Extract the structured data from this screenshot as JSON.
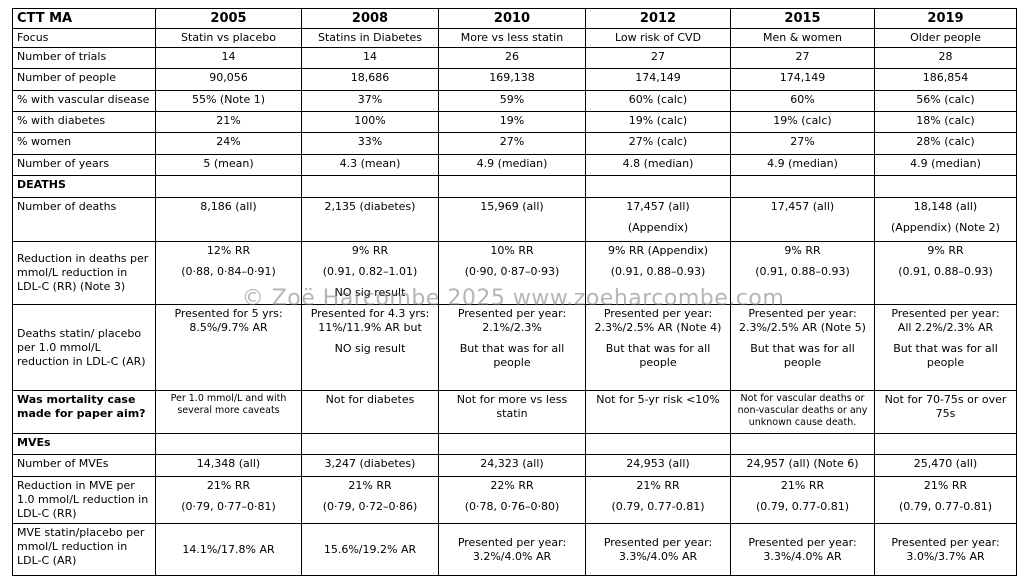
{
  "table": {
    "header": [
      "CTT MA",
      "2005",
      "2008",
      "2010",
      "2012",
      "2015",
      "2019"
    ],
    "rows": [
      {
        "label": "Focus",
        "cells": [
          "Statin vs placebo",
          "Statins in Diabetes",
          "More vs less statin",
          "Low risk of CVD",
          "Men & women",
          "Older people"
        ]
      },
      {
        "label": "Number of trials",
        "cells": [
          "14",
          "14",
          "26",
          "27",
          "27",
          "28"
        ]
      },
      {
        "label": "Number of people",
        "cells": [
          "90,056",
          "18,686",
          "169,138",
          "174,149",
          "174,149",
          "186,854"
        ]
      },
      {
        "label": "% with vascular disease",
        "cells": [
          "55% (Note 1)",
          "37%",
          "59%",
          "60% (calc)",
          "60%",
          "56% (calc)"
        ]
      },
      {
        "label": "% with diabetes",
        "cells": [
          "21%",
          "100%",
          "19%",
          "19% (calc)",
          "19% (calc)",
          "18% (calc)"
        ]
      },
      {
        "label": "% women",
        "cells": [
          "24%",
          "33%",
          "27%",
          "27% (calc)",
          "27%",
          "28% (calc)"
        ]
      },
      {
        "label": "Number of years",
        "cells": [
          "5 (mean)",
          "4.3 (mean)",
          "4.9 (median)",
          "4.8 (median)",
          "4.9 (median)",
          "4.9 (median)"
        ]
      },
      {
        "section": "DEATHS"
      },
      {
        "label": "Number of deaths",
        "cells": [
          "8,186 (all)",
          "2,135 (diabetes)",
          "15,969 (all)",
          [
            "17,457 (all)",
            "(Appendix)"
          ],
          "17,457 (all)",
          [
            "18,148 (all)",
            "(Appendix) (Note 2)"
          ]
        ]
      },
      {
        "label": [
          [
            "Reduction in deaths per",
            "mmol/L reduction in",
            "LDL-C (RR) (Note 3)"
          ]
        ],
        "cells": [
          [
            "12% RR",
            "(0·88, 0·84–0·91)"
          ],
          [
            "9% RR",
            "(0.91, 0.82–1.01)",
            "NO sig result"
          ],
          [
            "10% RR",
            "(0·90, 0·87–0·93)"
          ],
          [
            "9% RR (Appendix)",
            "(0.91, 0.88–0.93)"
          ],
          [
            "9% RR",
            "(0.91, 0.88–0.93)"
          ],
          [
            "9% RR",
            "(0.91, 0.88–0.93)"
          ]
        ]
      },
      {
        "label": [
          [
            "Deaths statin/ placebo",
            "per 1.0 mmol/L",
            "reduction in LDL-C (AR)"
          ]
        ],
        "cells": [
          [
            [
              "Presented for 5 yrs:",
              "8.5%/9.7% AR"
            ]
          ],
          [
            [
              "Presented for 4.3 yrs:",
              "11%/11.9% AR but"
            ],
            "NO sig result"
          ],
          [
            [
              "Presented per year:",
              "2.1%/2.3%"
            ],
            [
              "But that was for all",
              "people"
            ]
          ],
          [
            [
              "Presented per year:",
              "2.3%/2.5% AR (Note 4)"
            ],
            [
              "But that was for all",
              "people"
            ]
          ],
          [
            [
              "Presented per year:",
              "2.3%/2.5% AR (Note 5)"
            ],
            [
              "But that was for all",
              "people"
            ]
          ],
          [
            [
              "Presented per year:",
              "All 2.2%/2.3% AR"
            ],
            [
              "But that was for all",
              "people"
            ]
          ]
        ]
      },
      {
        "label": [
          [
            "Was mortality case",
            "made for paper aim?"
          ]
        ],
        "cells": [
          [
            [
              "Per 1.0 mmol/L and with",
              "several more caveats"
            ]
          ],
          "Not for diabetes",
          [
            [
              "Not for more vs less",
              "statin"
            ]
          ],
          "Not for 5-yr risk <10%",
          [
            [
              "Not for vascular deaths or",
              "non-vascular deaths or any",
              "unknown cause death."
            ]
          ],
          [
            [
              "Not for 70-75s or over",
              "75s"
            ]
          ]
        ]
      },
      {
        "section": "MVEs"
      },
      {
        "label": "Number of MVEs",
        "cells": [
          "14,348 (all)",
          "3,247 (diabetes)",
          "24,323 (all)",
          "24,953 (all)",
          "24,957 (all) (Note 6)",
          "25,470 (all)"
        ]
      },
      {
        "label": [
          [
            "Reduction in MVE per",
            "1.0 mmol/L reduction in",
            "LDL-C (RR)"
          ]
        ],
        "cells": [
          [
            "21% RR",
            "(0·79, 0·77–0·81)"
          ],
          [
            "21% RR",
            "(0·79, 0·72–0·86)"
          ],
          [
            "22% RR",
            "(0·78, 0·76–0·80)"
          ],
          [
            "21% RR",
            "(0.79, 0.77-0.81)"
          ],
          [
            "21% RR",
            "(0.79, 0.77-0.81)"
          ],
          [
            "21% RR",
            "(0.79, 0.77-0.81)"
          ]
        ]
      },
      {
        "label": [
          [
            "MVE statin/placebo per",
            "mmol/L reduction in",
            "LDL-C (AR)"
          ]
        ],
        "cells": [
          "14.1%/17.8% AR",
          "15.6%/19.2% AR",
          [
            [
              "Presented per year:",
              "3.2%/4.0% AR"
            ]
          ],
          [
            [
              "Presented per year:",
              "3.3%/4.0% AR"
            ]
          ],
          [
            [
              "Presented per year:",
              "3.3%/4.0% AR"
            ]
          ],
          [
            [
              "Presented per year:",
              "3.0%/3.7% AR"
            ]
          ]
        ]
      }
    ]
  },
  "watermark": "© Zoë Harcombe 2025 www.zoeharcombe.com"
}
